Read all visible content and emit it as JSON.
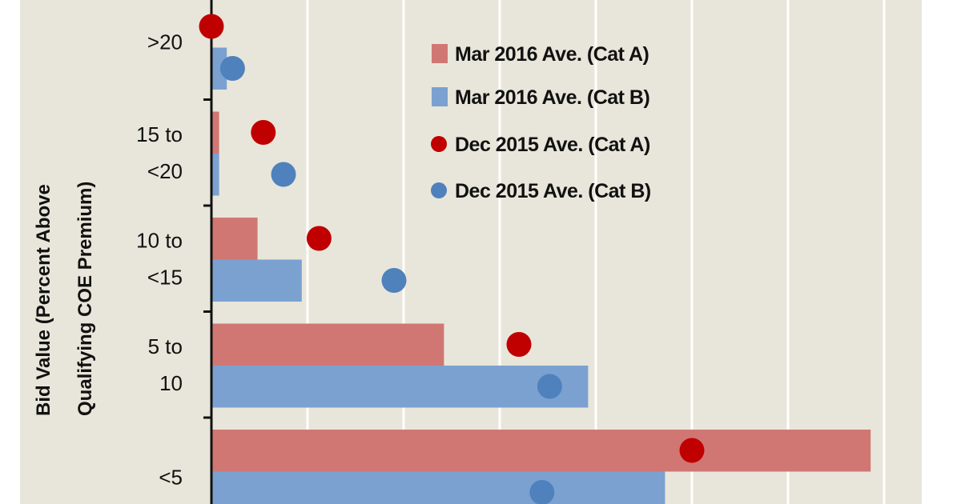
{
  "chart_data": {
    "type": "bar",
    "orientation": "horizontal",
    "title": "",
    "xlabel": "",
    "ylabel_lines": [
      "Bid Value  (Percent Above",
      "Qualifying COE Premium)"
    ],
    "categories": [
      ">20",
      "15 to <20",
      "10 to <15",
      "5 to 10",
      "<5"
    ],
    "category_lines": [
      [
        ">20"
      ],
      [
        "15 to",
        "<20"
      ],
      [
        "10 to",
        "<15"
      ],
      [
        "5 to",
        "10"
      ],
      [
        "<5"
      ]
    ],
    "xlim": [
      0,
      37
    ],
    "x_gridline_step": 5,
    "grid": true,
    "legend_position": "top-right",
    "series": [
      {
        "name": "Mar 2016 Ave. (Cat A)",
        "kind": "bar",
        "color": "#d07774",
        "values": [
          0,
          0.4,
          2.4,
          12.1,
          34.3
        ]
      },
      {
        "name": "Mar 2016 Ave. (Cat B)",
        "kind": "bar",
        "color": "#7ba1d0",
        "values": [
          0.8,
          0.4,
          4.7,
          19.6,
          23.6
        ]
      },
      {
        "name": "Dec 2015 Ave. (Cat A)",
        "kind": "dot",
        "color": "#c00000",
        "values": [
          0,
          2.7,
          5.6,
          16.0,
          25.0
        ]
      },
      {
        "name": "Dec 2015 Ave. (Cat B)",
        "kind": "dot",
        "color": "#4f81bd",
        "values": [
          1.1,
          3.75,
          9.5,
          17.6,
          17.2
        ]
      }
    ],
    "colors": {
      "plot_background": "#e8e6da",
      "gridline": "#ffffff",
      "axis": "#111111"
    }
  }
}
